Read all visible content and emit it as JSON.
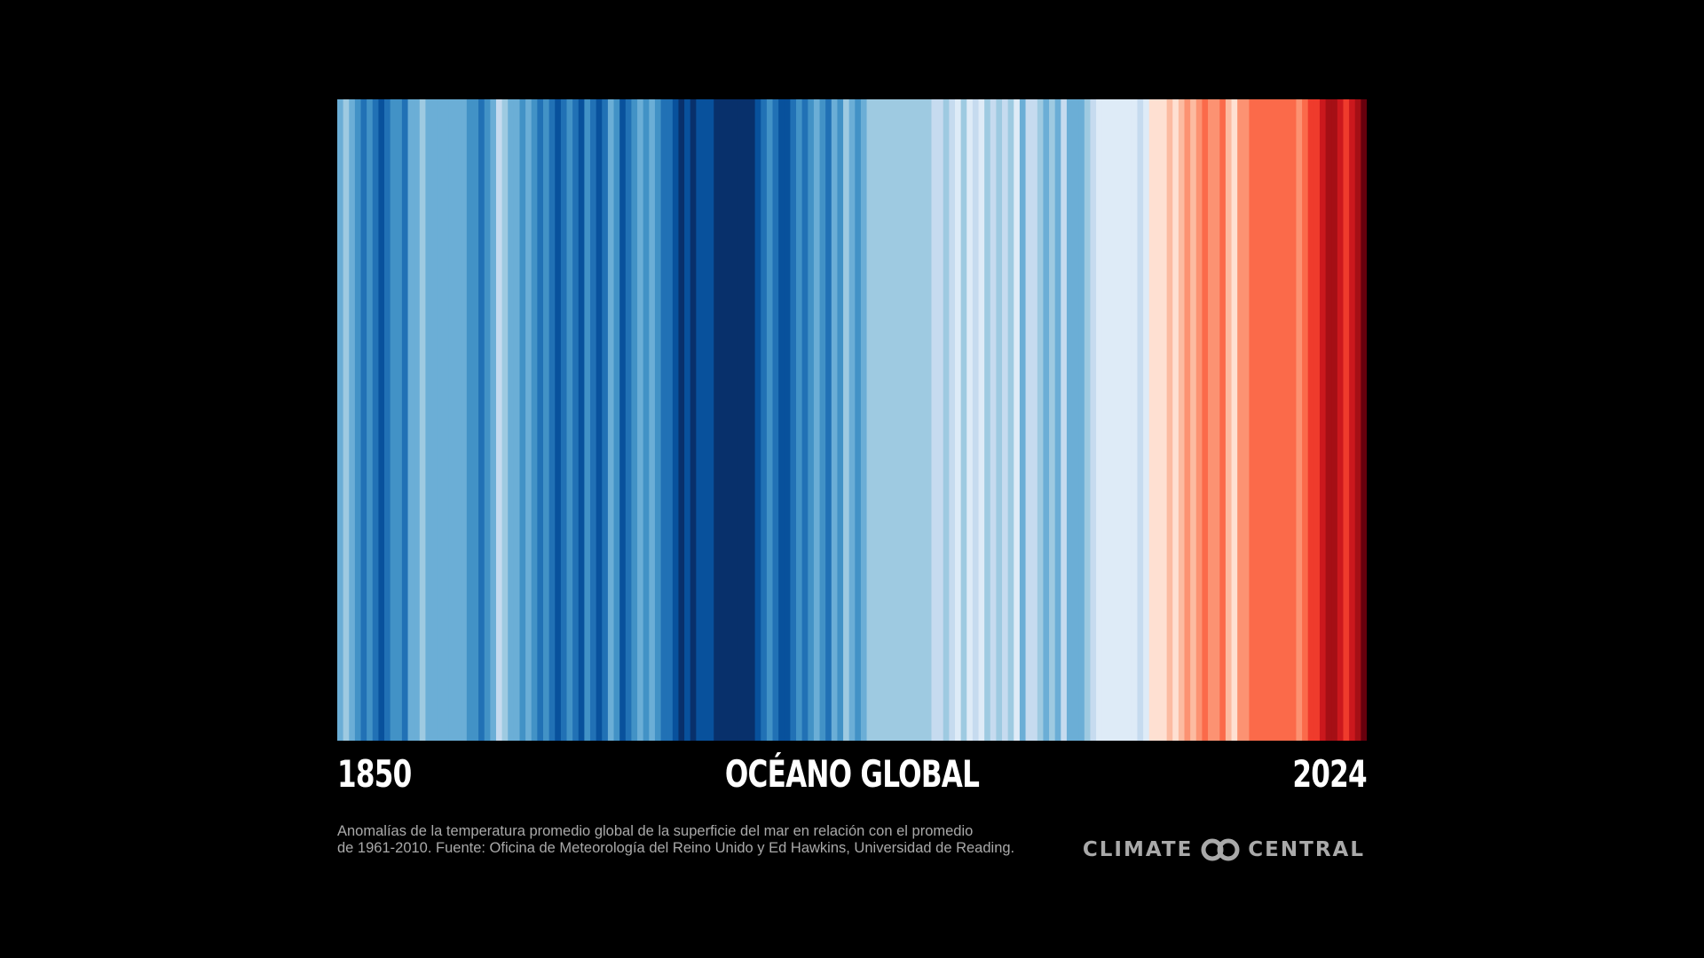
{
  "colors": {
    "background": "#000000",
    "text": "#ffffff",
    "muted_text": "#a9a9a9"
  },
  "chart_data": {
    "type": "warming_stripes",
    "title": "OCÉANO GLOBAL",
    "x_start_label": "1850",
    "x_end_label": "2024",
    "start_year": 1850,
    "end_year": 2024,
    "grid": false,
    "legend": "none",
    "colormap": [
      "#08306b",
      "#08519c",
      "#2171b5",
      "#4292c6",
      "#6baed6",
      "#9ecae1",
      "#c6dbef",
      "#deebf7",
      "#fee0d2",
      "#fcbba1",
      "#fc9272",
      "#fb6a4a",
      "#ef3b2c",
      "#cb181d",
      "#a50f15",
      "#67000d"
    ],
    "color_index_by_year": [
      4,
      5,
      4,
      3,
      2,
      3,
      2,
      1,
      2,
      3,
      3,
      2,
      4,
      4,
      5,
      4,
      4,
      4,
      4,
      4,
      4,
      4,
      3,
      3,
      2,
      3,
      4,
      6,
      5,
      4,
      4,
      3,
      4,
      3,
      2,
      3,
      2,
      1,
      2,
      3,
      2,
      1,
      3,
      2,
      1,
      2,
      4,
      3,
      1,
      2,
      3,
      4,
      3,
      4,
      3,
      2,
      2,
      1,
      0,
      1,
      0,
      1,
      1,
      1,
      0,
      0,
      0,
      0,
      0,
      0,
      0,
      1,
      2,
      3,
      2,
      1,
      1,
      2,
      3,
      2,
      3,
      4,
      3,
      2,
      4,
      3,
      5,
      4,
      3,
      4,
      5,
      5,
      5,
      5,
      5,
      5,
      5,
      5,
      5,
      5,
      5,
      6,
      6,
      5,
      6,
      7,
      5,
      7,
      6,
      7,
      5,
      6,
      5,
      6,
      5,
      7,
      4,
      6,
      6,
      5,
      4,
      5,
      4,
      6,
      4,
      4,
      4,
      5,
      6,
      7,
      7,
      7,
      7,
      7,
      7,
      7,
      6,
      7,
      8,
      8,
      8,
      9,
      8,
      9,
      10,
      9,
      10,
      11,
      10,
      10,
      11,
      9,
      8,
      10,
      10,
      11,
      11,
      11,
      11,
      11,
      11,
      11,
      11,
      10,
      11,
      12,
      12,
      13,
      14,
      14,
      13,
      12,
      13,
      14,
      15
    ]
  },
  "footer": {
    "note_line1": "Anomalías de la temperatura promedio global de la superficie del mar en relación con el promedio",
    "note_line2": "de 1961-2010. Fuente: Oficina de Meteorología del Reino Unido y Ed Hawkins, Universidad de Reading.",
    "brand_left": "CLIMATE",
    "brand_right": "CENTRAL",
    "brand_icon": "interlocking-rings-icon"
  }
}
